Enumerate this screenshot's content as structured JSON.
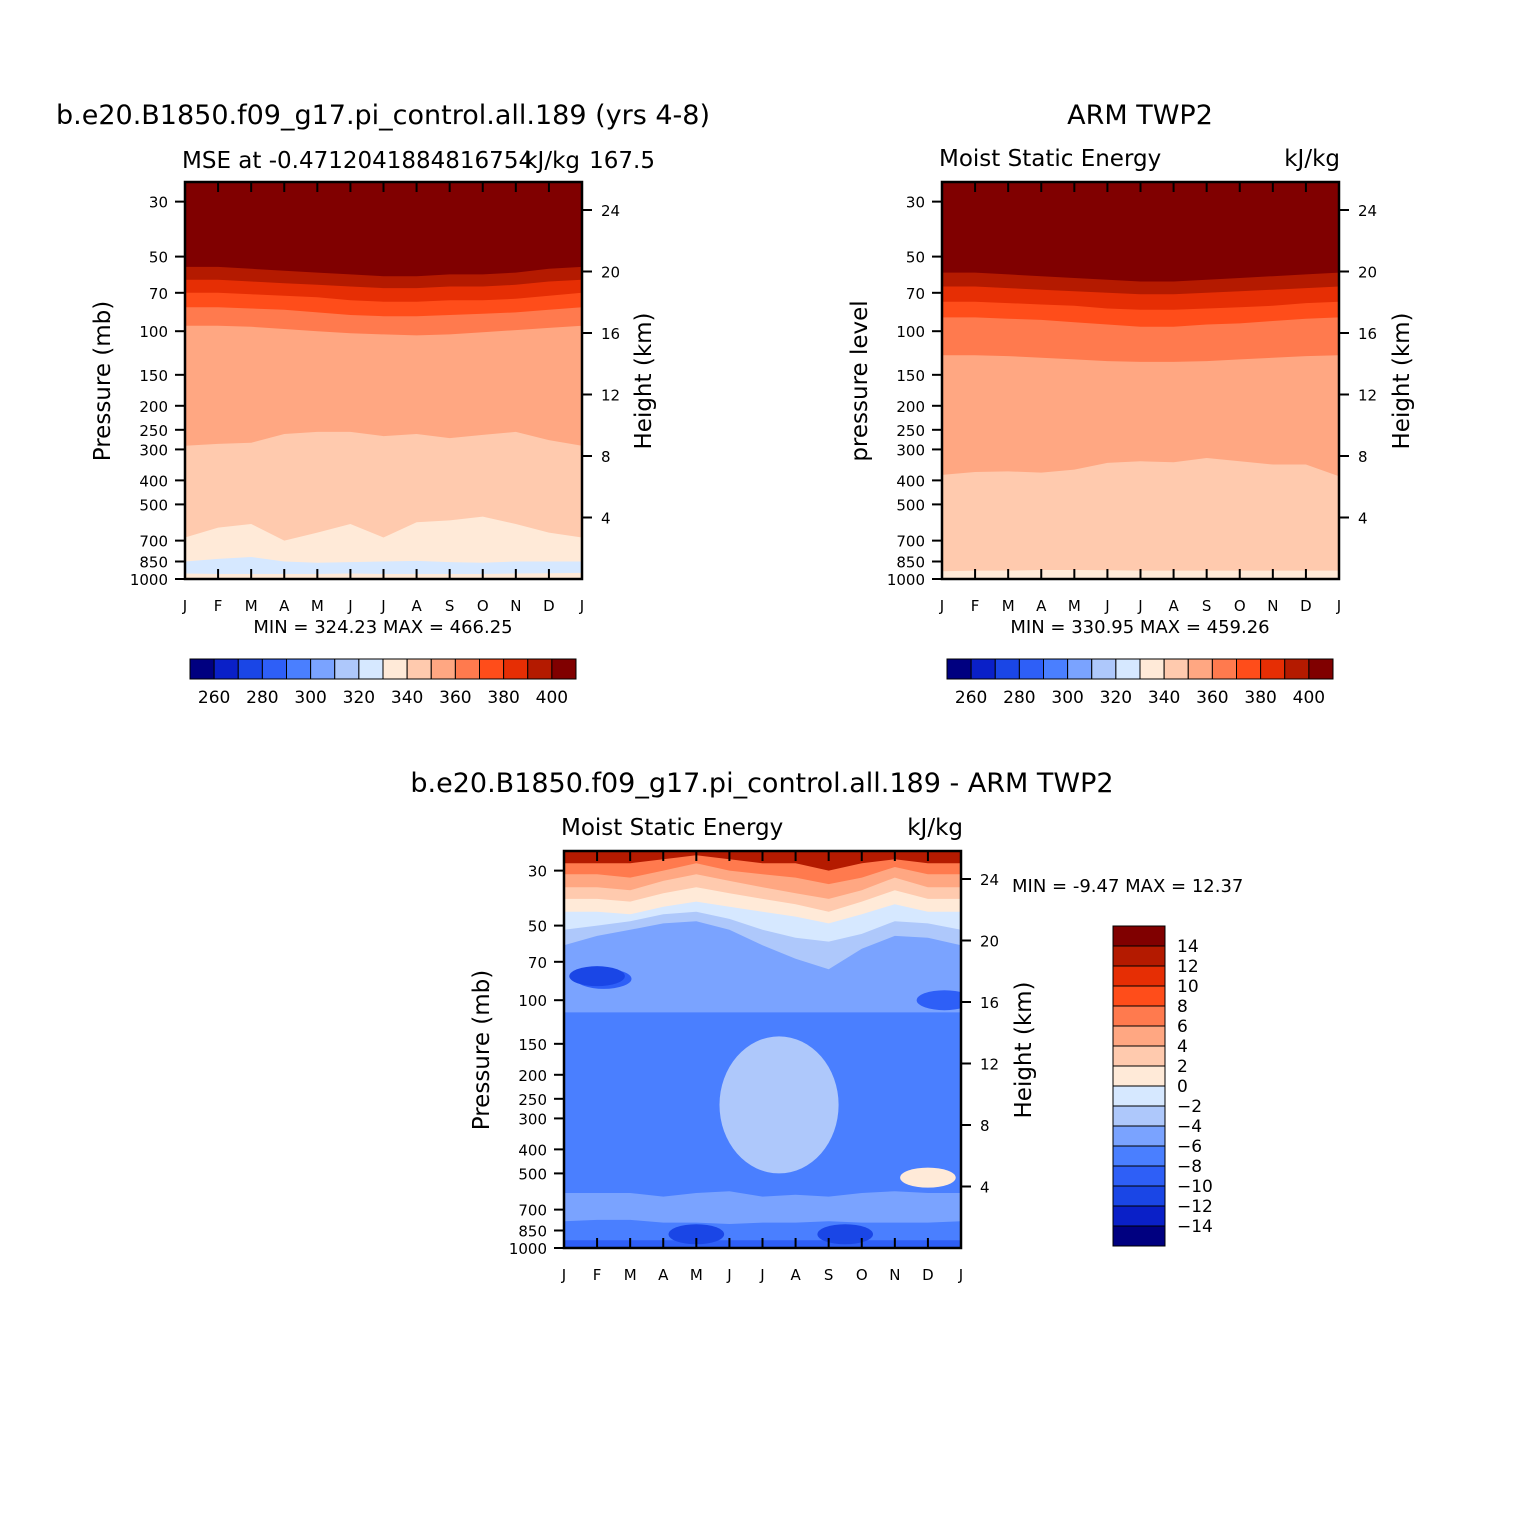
{
  "chart_data": [
    {
      "type": "heatmap",
      "plot_type": "filled-contour",
      "title": "b.e20.B1850.f09_g17.pi_control.all.189 (yrs 4-8)",
      "subtitle_left": "MSE at -0.4712041884816754",
      "subtitle_center": "167.5",
      "units": "kJ/kg",
      "ylabel": "Pressure (mb)",
      "ylabel_right": "Height (km)",
      "y_scale": "log",
      "ylim": [
        1000,
        25
      ],
      "months": [
        "J",
        "F",
        "M",
        "A",
        "M",
        "J",
        "J",
        "A",
        "S",
        "O",
        "N",
        "D",
        "J"
      ],
      "pressure_ticks": [
        30,
        50,
        70,
        100,
        150,
        200,
        250,
        300,
        400,
        500,
        700,
        850,
        1000
      ],
      "height_ticks": [
        4,
        8,
        12,
        16,
        20,
        24
      ],
      "stats_text": "MIN = 324.23 MAX = 466.25",
      "min": 324.23,
      "max": 466.25,
      "colorbar": {
        "orientation": "horizontal",
        "levels": [
          260,
          270,
          280,
          290,
          300,
          310,
          320,
          330,
          340,
          350,
          360,
          370,
          380,
          390,
          400
        ],
        "tick_labels": [
          "260",
          "280",
          "300",
          "320",
          "340",
          "360",
          "380",
          "400"
        ]
      },
      "contour_boundaries_mb": [
        {
          "value": 400,
          "p": [
            55,
            55,
            56,
            57,
            58,
            59,
            60,
            60,
            59,
            59,
            58,
            56,
            55
          ]
        },
        {
          "value": 390,
          "p": [
            62,
            62,
            63,
            64,
            65,
            66,
            67,
            67,
            66,
            66,
            65,
            63,
            62
          ]
        },
        {
          "value": 380,
          "p": [
            70,
            70,
            71,
            72,
            73,
            75,
            76,
            76,
            75,
            75,
            74,
            72,
            70
          ]
        },
        {
          "value": 370,
          "p": [
            80,
            80,
            81,
            82,
            84,
            86,
            87,
            87,
            86,
            85,
            84,
            82,
            80
          ]
        },
        {
          "value": 360,
          "p": [
            95,
            95,
            96,
            98,
            100,
            102,
            103,
            104,
            103,
            101,
            99,
            97,
            95
          ]
        },
        {
          "value": 350,
          "p": [
            290,
            285,
            282,
            260,
            255,
            255,
            265,
            260,
            270,
            262,
            255,
            275,
            290
          ]
        },
        {
          "value": 340,
          "p": [
            680,
            620,
            600,
            700,
            650,
            600,
            680,
            590,
            580,
            560,
            600,
            650,
            680
          ]
        },
        {
          "value": 330,
          "p": [
            850,
            830,
            815,
            850,
            860,
            855,
            850,
            845,
            855,
            860,
            850,
            850,
            850
          ]
        },
        {
          "value": 340,
          "p": [
            950,
            955,
            955,
            955,
            955,
            950,
            955,
            955,
            955,
            955,
            950,
            948,
            945
          ]
        },
        {
          "value": 350,
          "p": [
            1000,
            1000,
            1000,
            1000,
            1000,
            1000,
            1000,
            1000,
            1000,
            1000,
            1000,
            1000,
            1000
          ]
        }
      ]
    },
    {
      "type": "heatmap",
      "plot_type": "filled-contour",
      "title": "ARM TWP2",
      "subtitle_left": "Moist Static Energy",
      "units": "kJ/kg",
      "ylabel": "pressure level",
      "ylabel_right": "Height (km)",
      "y_scale": "log",
      "ylim": [
        1000,
        25
      ],
      "months": [
        "J",
        "F",
        "M",
        "A",
        "M",
        "J",
        "J",
        "A",
        "S",
        "O",
        "N",
        "D",
        "J"
      ],
      "pressure_ticks": [
        30,
        50,
        70,
        100,
        150,
        200,
        250,
        300,
        400,
        500,
        700,
        850,
        1000
      ],
      "height_ticks": [
        4,
        8,
        12,
        16,
        20,
        24
      ],
      "stats_text": "MIN = 330.95 MAX = 459.26",
      "min": 330.95,
      "max": 459.26,
      "colorbar": {
        "orientation": "horizontal",
        "levels": [
          260,
          270,
          280,
          290,
          300,
          310,
          320,
          330,
          340,
          350,
          360,
          370,
          380,
          390,
          400
        ],
        "tick_labels": [
          "260",
          "280",
          "300",
          "320",
          "340",
          "360",
          "380",
          "400"
        ]
      },
      "contour_boundaries_mb": [
        {
          "value": 400,
          "p": [
            58,
            58,
            59,
            60,
            61,
            62,
            63,
            63,
            62,
            61,
            60,
            59,
            58
          ]
        },
        {
          "value": 390,
          "p": [
            66,
            66,
            67,
            68,
            69,
            70,
            71,
            71,
            70,
            69,
            68,
            67,
            66
          ]
        },
        {
          "value": 380,
          "p": [
            76,
            76,
            77,
            78,
            79,
            81,
            82,
            82,
            81,
            80,
            79,
            77,
            76
          ]
        },
        {
          "value": 370,
          "p": [
            88,
            88,
            89,
            90,
            92,
            94,
            96,
            96,
            94,
            93,
            91,
            89,
            88
          ]
        },
        {
          "value": 360,
          "p": [
            125,
            125,
            126,
            128,
            130,
            132,
            133,
            133,
            132,
            130,
            128,
            126,
            125
          ]
        },
        {
          "value": 350,
          "p": [
            380,
            370,
            368,
            372,
            362,
            340,
            335,
            338,
            325,
            335,
            345,
            345,
            385
          ]
        },
        {
          "value": 340,
          "p": [
            930,
            925,
            925,
            920,
            920,
            922,
            925,
            925,
            925,
            925,
            925,
            925,
            925
          ]
        },
        {
          "value": 350,
          "p": [
            1000,
            1000,
            1000,
            1000,
            1000,
            1000,
            1000,
            1000,
            1000,
            1000,
            1000,
            1000,
            1000
          ]
        }
      ]
    },
    {
      "type": "heatmap",
      "plot_type": "filled-contour",
      "title": "b.e20.B1850.f09_g17.pi_control.all.189 - ARM TWP2",
      "subtitle_left": "Moist Static Energy",
      "units": "kJ/kg",
      "ylabel": "Pressure (mb)",
      "ylabel_right": "Height (km)",
      "y_scale": "log",
      "ylim": [
        1000,
        25
      ],
      "months": [
        "J",
        "F",
        "M",
        "A",
        "M",
        "J",
        "J",
        "A",
        "S",
        "O",
        "N",
        "D",
        "J"
      ],
      "pressure_ticks": [
        30,
        50,
        70,
        100,
        150,
        200,
        250,
        300,
        400,
        500,
        700,
        850,
        1000
      ],
      "height_ticks": [
        4,
        8,
        12,
        16,
        20,
        24
      ],
      "stats_text": "MIN = -9.47 MAX = 12.37",
      "min": -9.47,
      "max": 12.37,
      "colorbar": {
        "orientation": "vertical",
        "levels": [
          -14,
          -12,
          -10,
          -8,
          -6,
          -4,
          -2,
          0,
          2,
          4,
          6,
          8,
          10,
          12,
          14
        ],
        "tick_labels": [
          "-14",
          "-12",
          "-10",
          "-8",
          "-6",
          "-4",
          "-2",
          "0",
          "2",
          "4",
          "6",
          "8",
          "10",
          "12",
          "14"
        ]
      },
      "contour_boundaries_mb": [
        {
          "value": 8,
          "p": [
            28,
            28,
            28,
            27,
            26,
            27,
            28,
            28,
            30,
            28,
            27,
            28,
            28
          ]
        },
        {
          "value": 6,
          "p": [
            31,
            31,
            32,
            30,
            28,
            30,
            31,
            32,
            34,
            32,
            29,
            31,
            31
          ]
        },
        {
          "value": 4,
          "p": [
            35,
            35,
            36,
            33,
            31,
            33,
            35,
            37,
            39,
            36,
            32,
            35,
            35
          ]
        },
        {
          "value": 2,
          "p": [
            39,
            39,
            40,
            37,
            35,
            37,
            39,
            41,
            44,
            40,
            36,
            39,
            39
          ]
        },
        {
          "value": 0,
          "p": [
            44,
            44,
            45,
            42,
            40,
            42,
            44,
            46,
            49,
            45,
            41,
            44,
            44
          ]
        },
        {
          "value": -2,
          "p": [
            52,
            50,
            48,
            45,
            44,
            47,
            52,
            56,
            58,
            54,
            48,
            49,
            52
          ]
        },
        {
          "value": -4,
          "p": [
            60,
            55,
            52,
            49,
            48,
            52,
            60,
            68,
            75,
            62,
            55,
            56,
            60
          ]
        },
        {
          "value": -6,
          "p": [
            112,
            112,
            112,
            112,
            112,
            112,
            112,
            112,
            112,
            112,
            112,
            112,
            112
          ]
        },
        {
          "value": -4,
          "p": [
            600,
            600,
            600,
            620,
            600,
            590,
            620,
            610,
            620,
            600,
            590,
            600,
            600
          ]
        },
        {
          "value": -6,
          "p": [
            780,
            770,
            770,
            790,
            790,
            800,
            790,
            790,
            780,
            790,
            790,
            790,
            780
          ]
        },
        {
          "value": -8,
          "p": [
            930,
            930,
            930,
            930,
            930,
            930,
            930,
            930,
            930,
            930,
            930,
            930,
            930
          ]
        },
        {
          "value": -4,
          "p": [
            1000,
            1000,
            1000,
            1000,
            1000,
            1000,
            1000,
            1000,
            1000,
            1000,
            1000,
            1000,
            1000
          ]
        }
      ],
      "patches": [
        {
          "value": -8,
          "centers_month": [
            1.2,
            11.5
          ],
          "p": [
            82,
            100
          ]
        },
        {
          "value": -10,
          "centers_month": [
            1.0
          ],
          "p": [
            80
          ]
        },
        {
          "value": -2,
          "centers_month": [
            6.5
          ],
          "p_range": [
            140,
            500
          ]
        },
        {
          "value": -10,
          "centers_month": [
            4.0,
            8.5
          ],
          "p": [
            880
          ]
        },
        {
          "value": 2,
          "centers_month": [
            11.0
          ],
          "p": [
            520
          ]
        }
      ]
    }
  ],
  "colors": {
    "blue_red": [
      "#000080",
      "#0a20c8",
      "#1a46e6",
      "#2e5ff7",
      "#4a7fff",
      "#7aa3ff",
      "#aec8fb",
      "#d6e8ff",
      "#ffead8",
      "#ffcaae",
      "#ffa782",
      "#ff7a4e",
      "#ff4d1a",
      "#e62e04",
      "#b41a00",
      "#800000"
    ]
  }
}
